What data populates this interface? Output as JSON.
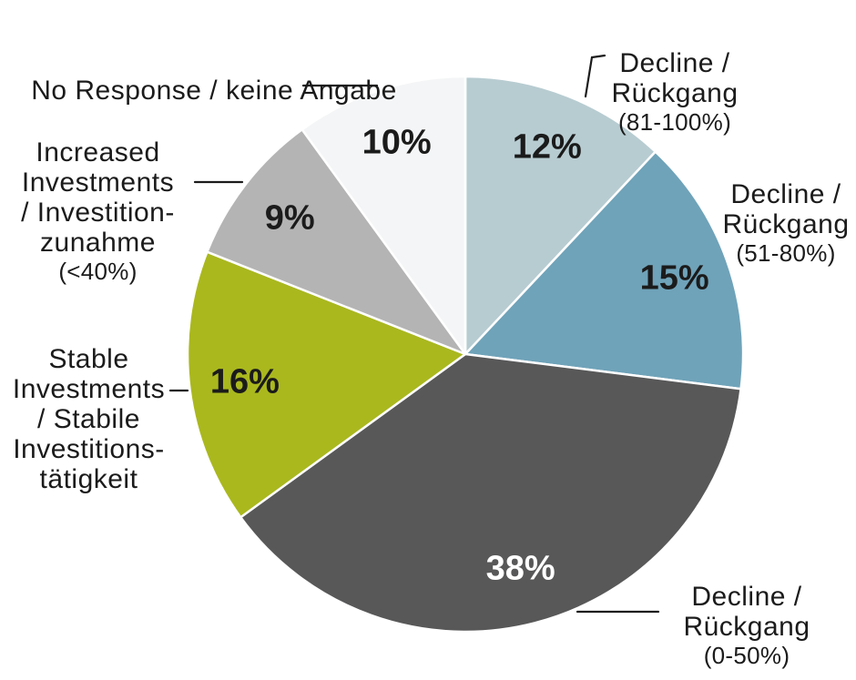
{
  "chart_data": {
    "type": "pie",
    "title": "",
    "unit": "%",
    "start_angle_deg": 0,
    "direction": "clockwise",
    "legend_position": "outside-callouts",
    "slices": [
      {
        "label": "Decline / Rückgang (81-100%)",
        "value": 12,
        "pct_label": "12%",
        "color": "#b7ccd1",
        "value_label_color": "#1b1b1b"
      },
      {
        "label": "Decline / Rückgang (51-80%)",
        "value": 15,
        "pct_label": "15%",
        "color": "#6fa3b9",
        "value_label_color": "#1b1b1b"
      },
      {
        "label": "Decline / Rückgang (0-50%)",
        "value": 38,
        "pct_label": "38%",
        "color": "#585859",
        "value_label_color": "#ffffff"
      },
      {
        "label": "Stable Investments / Stabile Investitionstätigkeit",
        "value": 16,
        "pct_label": "16%",
        "color": "#aab81e",
        "value_label_color": "#1b1b1b"
      },
      {
        "label": "Increased Investments / Investitionzunahme (<40%)",
        "value": 9,
        "pct_label": "9%",
        "color": "#b4b4b4",
        "value_label_color": "#1b1b1b"
      },
      {
        "label": "No Response / keine Angabe",
        "value": 10,
        "pct_label": "10%",
        "color": "#f4f5f6",
        "value_label_color": "#1b1b1b"
      }
    ]
  },
  "labels": {
    "no_response": {
      "text": "No Response / keine Angabe"
    },
    "increased": {
      "text": "Increased\nInvestments\n/ Investition-\nzunahme",
      "qualifier": "(<40%)"
    },
    "stable": {
      "text": "Stable\nInvestments\n/ Stabile\nInvestitions-\ntätigkeit"
    },
    "decline_81_100": {
      "text": "Decline /\nRückgang",
      "qualifier": "(81-100%)"
    },
    "decline_51_80": {
      "text": "Decline /\nRückgang",
      "qualifier": "(51-80%)"
    },
    "decline_0_50": {
      "text": "Decline /\nRückgang",
      "qualifier": "(0-50%)"
    }
  },
  "colors": {
    "background": "#ffffff",
    "text": "#1b1b1b",
    "separator": "#ffffff",
    "leader_line": "#1b1b1b"
  }
}
